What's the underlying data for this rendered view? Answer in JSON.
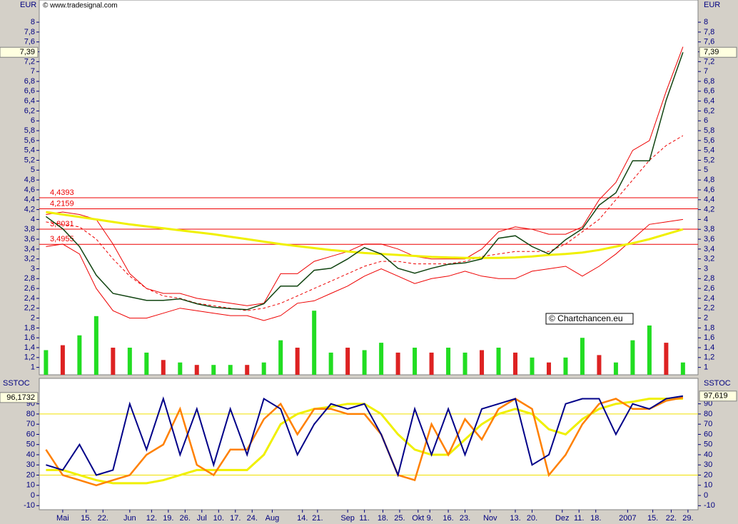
{
  "chart_data": [
    {
      "type": "line",
      "axis_label": "EUR",
      "watermark": "© www.tradesignal.com",
      "annotation": "© Chartchancen.eu",
      "xlim": [
        -1.4,
        37.9
      ],
      "ylim": [
        0.85,
        8.45
      ],
      "yticks": [
        8,
        {
          "value": 7.8,
          "label": "7,8"
        },
        {
          "value": 7.6,
          "label": "7,6"
        },
        {
          "value": 7.4,
          "label": "7,4"
        },
        {
          "value": 7.2,
          "label": "7,2"
        },
        7,
        {
          "value": 6.8,
          "label": "6,8"
        },
        {
          "value": 6.6,
          "label": "6,6"
        },
        {
          "value": 6.4,
          "label": "6,4"
        },
        {
          "value": 6.2,
          "label": "6,2"
        },
        6,
        {
          "value": 5.8,
          "label": "5,8"
        },
        {
          "value": 5.6,
          "label": "5,6"
        },
        {
          "value": 5.4,
          "label": "5,4"
        },
        {
          "value": 5.2,
          "label": "5,2"
        },
        5,
        {
          "value": 4.8,
          "label": "4,8"
        },
        {
          "value": 4.6,
          "label": "4,6"
        },
        {
          "value": 4.4,
          "label": "4,4"
        },
        {
          "value": 4.2,
          "label": "4,2"
        },
        4,
        {
          "value": 3.8,
          "label": "3,8"
        },
        {
          "value": 3.6,
          "label": "3,6"
        },
        {
          "value": 3.4,
          "label": "3,4"
        },
        {
          "value": 3.2,
          "label": "3,2"
        },
        3,
        {
          "value": 2.8,
          "label": "2,8"
        },
        {
          "value": 2.6,
          "label": "2,6"
        },
        {
          "value": 2.4,
          "label": "2,4"
        },
        {
          "value": 2.2,
          "label": "2,2"
        },
        2,
        {
          "value": 1.8,
          "label": "1,8"
        },
        {
          "value": 1.6,
          "label": "1,6"
        },
        {
          "value": 1.4,
          "label": "1,4"
        },
        {
          "value": 1.2,
          "label": "1,2"
        },
        1
      ],
      "x": [
        -1,
        0,
        1,
        2,
        3,
        4,
        5,
        6,
        7,
        8,
        9,
        10,
        11,
        12,
        13,
        14,
        15,
        16,
        17,
        18,
        19,
        20,
        21,
        22,
        23,
        24,
        25,
        26,
        27,
        28,
        29,
        30,
        31,
        32,
        33,
        34,
        35,
        36,
        37
      ],
      "levels": [
        {
          "value": 4.4393,
          "label": "4,4393"
        },
        {
          "value": 4.2159,
          "label": "4,2159"
        },
        {
          "value": 3.8031,
          "label": "3,8031"
        },
        {
          "value": 3.4955,
          "label": "3,4955"
        }
      ],
      "level_color": "#ee0000",
      "volume": {
        "values": [
          1.35,
          1.45,
          1.65,
          2.04,
          1.4,
          1.4,
          1.3,
          1.15,
          1.1,
          1.05,
          1.05,
          1.05,
          1.05,
          1.1,
          1.55,
          1.4,
          2.15,
          1.3,
          1.4,
          1.35,
          1.5,
          1.3,
          1.4,
          1.3,
          1.4,
          1.3,
          1.35,
          1.4,
          1.3,
          1.2,
          1.1,
          1.2,
          1.6,
          1.25,
          1.1,
          1.55,
          1.85,
          1.5,
          1.1
        ],
        "colors": [
          "#22dd22",
          "#dd2222",
          "#22dd22",
          "#22dd22",
          "#dd2222",
          "#22dd22",
          "#22dd22",
          "#dd2222",
          "#22dd22",
          "#dd2222",
          "#22dd22",
          "#22dd22",
          "#dd2222",
          "#22dd22",
          "#22dd22",
          "#dd2222",
          "#22dd22",
          "#22dd22",
          "#dd2222",
          "#22dd22",
          "#22dd22",
          "#dd2222",
          "#22dd22",
          "#dd2222",
          "#22dd22",
          "#22dd22",
          "#dd2222",
          "#22dd22",
          "#dd2222",
          "#22dd22",
          "#dd2222",
          "#22dd22",
          "#22dd22",
          "#dd2222",
          "#22dd22",
          "#22dd22",
          "#22dd22",
          "#dd2222",
          "#22dd22"
        ]
      },
      "series": [
        {
          "color": "#ee0000",
          "width": 1,
          "values": [
            4.1,
            4.15,
            4.1,
            4.0,
            3.5,
            2.9,
            2.6,
            2.5,
            2.5,
            2.4,
            2.35,
            2.3,
            2.25,
            2.3,
            2.9,
            2.9,
            3.15,
            3.25,
            3.35,
            3.5,
            3.5,
            3.4,
            3.25,
            3.2,
            3.2,
            3.2,
            3.4,
            3.75,
            3.85,
            3.8,
            3.7,
            3.7,
            3.85,
            4.4,
            4.75,
            5.4,
            5.6,
            6.6,
            7.5
          ]
        },
        {
          "color": "#ee0000",
          "width": 1,
          "values": [
            3.45,
            3.5,
            3.3,
            2.6,
            2.15,
            2.0,
            2.0,
            2.1,
            2.2,
            2.15,
            2.1,
            2.05,
            2.05,
            1.95,
            2.05,
            2.3,
            2.35,
            2.5,
            2.65,
            2.85,
            3.0,
            2.85,
            2.7,
            2.8,
            2.85,
            2.95,
            2.85,
            2.8,
            2.8,
            2.95,
            3.0,
            3.05,
            2.85,
            3.05,
            3.3,
            3.6,
            3.9,
            3.95,
            4.0
          ]
        },
        {
          "color": "#ee0000",
          "width": 1,
          "dash": true,
          "values": [
            3.95,
            3.9,
            3.85,
            3.6,
            3.2,
            2.85,
            2.6,
            2.45,
            2.4,
            2.3,
            2.25,
            2.2,
            2.15,
            2.2,
            2.3,
            2.45,
            2.6,
            2.75,
            2.9,
            3.05,
            3.15,
            3.15,
            3.1,
            3.1,
            3.1,
            3.15,
            3.25,
            3.3,
            3.35,
            3.35,
            3.35,
            3.5,
            3.75,
            4.0,
            4.4,
            4.8,
            5.2,
            5.5,
            5.7
          ]
        },
        {
          "color": "#f0f000",
          "width": 3,
          "values": [
            4.15,
            4.1,
            4.05,
            4.0,
            3.95,
            3.9,
            3.86,
            3.82,
            3.78,
            3.74,
            3.7,
            3.65,
            3.6,
            3.55,
            3.5,
            3.46,
            3.42,
            3.38,
            3.35,
            3.32,
            3.3,
            3.28,
            3.26,
            3.24,
            3.23,
            3.22,
            3.22,
            3.22,
            3.23,
            3.25,
            3.28,
            3.3,
            3.33,
            3.38,
            3.45,
            3.52,
            3.6,
            3.7,
            3.8
          ]
        },
        {
          "color": "#114411",
          "width": 1.5,
          "values": [
            4.06,
            3.81,
            3.45,
            2.87,
            2.5,
            2.43,
            2.36,
            2.36,
            2.39,
            2.29,
            2.22,
            2.19,
            2.17,
            2.29,
            2.65,
            2.65,
            2.97,
            3.01,
            3.2,
            3.43,
            3.3,
            3.01,
            2.91,
            3.01,
            3.09,
            3.12,
            3.2,
            3.62,
            3.67,
            3.45,
            3.3,
            3.59,
            3.81,
            4.29,
            4.54,
            5.19,
            5.19,
            6.42,
            7.39
          ],
          "last_label": "7,39",
          "label_side": "both"
        }
      ]
    },
    {
      "type": "line",
      "axis_label": "SSTOC",
      "xlim": [
        -1.4,
        37.9
      ],
      "ylim": [
        -14,
        115
      ],
      "yticks": [
        90,
        80,
        70,
        60,
        50,
        40,
        30,
        20,
        10,
        0,
        -10
      ],
      "levels": [
        80,
        20
      ],
      "level_color": "#f0e000",
      "x": [
        -1,
        0,
        1,
        2,
        3,
        4,
        5,
        6,
        7,
        8,
        9,
        10,
        11,
        12,
        13,
        14,
        15,
        16,
        17,
        18,
        19,
        20,
        21,
        22,
        23,
        24,
        25,
        26,
        27,
        28,
        29,
        30,
        31,
        32,
        33,
        34,
        35,
        36,
        37
      ],
      "xticks": [
        {
          "value": 0,
          "label": "Mai"
        },
        {
          "value": 1.4,
          "label": "15."
        },
        {
          "value": 2.4,
          "label": "22."
        },
        {
          "value": 4.0,
          "label": "Jun"
        },
        {
          "value": 5.3,
          "label": "12."
        },
        {
          "value": 6.3,
          "label": "19."
        },
        {
          "value": 7.3,
          "label": "26."
        },
        {
          "value": 8.3,
          "label": "Jul"
        },
        {
          "value": 9.3,
          "label": "10."
        },
        {
          "value": 10.3,
          "label": "17."
        },
        {
          "value": 11.3,
          "label": "24."
        },
        {
          "value": 12.5,
          "label": "Aug"
        },
        {
          "value": 14.3,
          "label": "14."
        },
        {
          "value": 15.2,
          "label": "21."
        },
        {
          "value": 17.0,
          "label": "Sep"
        },
        {
          "value": 18.0,
          "label": "11."
        },
        {
          "value": 19.1,
          "label": "18."
        },
        {
          "value": 20.1,
          "label": "25."
        },
        {
          "value": 21.2,
          "label": "Okt"
        },
        {
          "value": 21.9,
          "label": "9."
        },
        {
          "value": 23.0,
          "label": "16."
        },
        {
          "value": 24.0,
          "label": "23."
        },
        {
          "value": 25.5,
          "label": "Nov"
        },
        {
          "value": 27.0,
          "label": "13."
        },
        {
          "value": 28.0,
          "label": "20."
        },
        {
          "value": 29.8,
          "label": "Dez"
        },
        {
          "value": 30.8,
          "label": "11."
        },
        {
          "value": 31.8,
          "label": "18."
        },
        {
          "value": 33.7,
          "label": "2007"
        },
        {
          "value": 35.2,
          "label": "15."
        },
        {
          "value": 36.3,
          "label": "22."
        },
        {
          "value": 37.3,
          "label": "29."
        }
      ],
      "series": [
        {
          "color": "#f0f000",
          "width": 3,
          "values": [
            25,
            25,
            20,
            15,
            12,
            12,
            12,
            15,
            20,
            25,
            25,
            25,
            25,
            40,
            70,
            80,
            85,
            87,
            90,
            90,
            80,
            60,
            45,
            40,
            40,
            55,
            70,
            80,
            85,
            80,
            65,
            60,
            75,
            85,
            90,
            92,
            95,
            95,
            95
          ]
        },
        {
          "color": "#ff8000",
          "width": 2.5,
          "values": [
            45,
            20,
            15,
            10,
            15,
            20,
            40,
            50,
            85,
            30,
            20,
            45,
            45,
            75,
            90,
            60,
            85,
            85,
            80,
            80,
            60,
            20,
            15,
            70,
            40,
            75,
            55,
            85,
            95,
            85,
            20,
            40,
            70,
            90,
            95,
            85,
            85,
            93,
            96.1732
          ],
          "last_label": "96,1732",
          "label_side": "left"
        },
        {
          "color": "#000088",
          "width": 2,
          "values": [
            30,
            25,
            50,
            20,
            25,
            90,
            45,
            95,
            40,
            85,
            30,
            85,
            40,
            95,
            85,
            40,
            70,
            90,
            85,
            90,
            60,
            20,
            85,
            40,
            85,
            40,
            85,
            90,
            95,
            30,
            40,
            90,
            95,
            95,
            60,
            90,
            85,
            95,
            97.619
          ],
          "last_label": "97,619",
          "label_side": "right"
        }
      ]
    }
  ]
}
